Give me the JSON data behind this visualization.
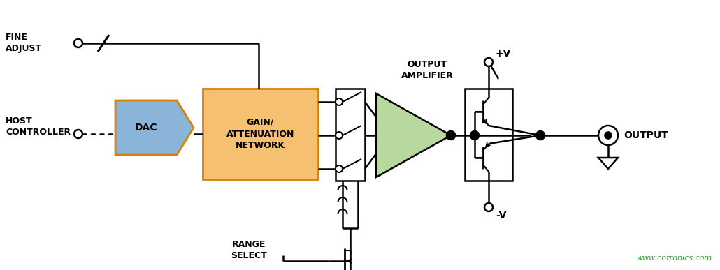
{
  "bg_color": "#ffffff",
  "line_color": "#000000",
  "dac_fill": "#8ab4d8",
  "dac_stroke": "#d4820a",
  "gain_fill": "#f5c070",
  "gain_stroke": "#d4820a",
  "amp_fill": "#b8d8a0",
  "amp_stroke": "#000000",
  "watermark_color": "#3a9a3a",
  "watermark_text": "www.cntronics.com",
  "label_fine_adjust": "FINE\nADJUST",
  "label_host_controller": "HOST\nCONTROLLER",
  "label_dac": "DAC",
  "label_gain": "GAIN/\nATTENUATION\nNETWORK",
  "label_output_amplifier": "OUTPUT\nAMPLIFIER",
  "label_output": "OUTPUT",
  "label_range_select": "RANGE\nSELECT",
  "label_plus_v": "+V",
  "label_minus_v": "-V"
}
